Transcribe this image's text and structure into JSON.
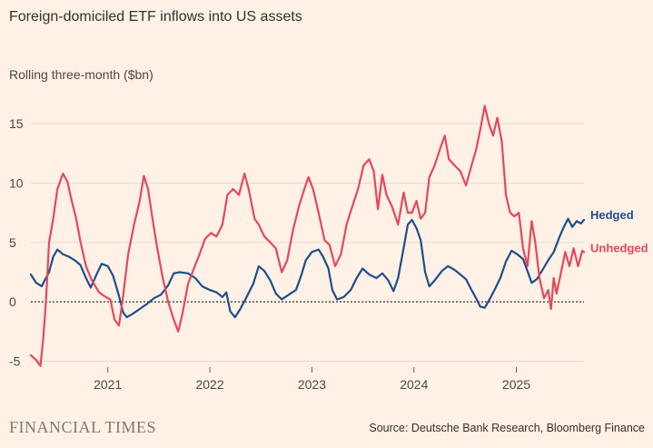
{
  "header": {
    "title": "Foreign-domiciled ETF inflows into US assets",
    "subtitle": "Rolling three-month ($bn)"
  },
  "footer": {
    "brand": "FINANCIAL TIMES",
    "source": "Source: Deutsche Bank Research, Bloomberg Finance"
  },
  "chart_data": {
    "type": "line",
    "ylim": [
      -5.5,
      17
    ],
    "xlim": [
      "2020-04-01",
      "2025-08-31"
    ],
    "y_ticks": [
      -5,
      0,
      5,
      10,
      15
    ],
    "x_ticks": [
      {
        "label": "2021",
        "date": "2021-01-01"
      },
      {
        "label": "2022",
        "date": "2022-01-01"
      },
      {
        "label": "2023",
        "date": "2023-01-01"
      },
      {
        "label": "2024",
        "date": "2024-01-01"
      },
      {
        "label": "2025",
        "date": "2025-01-01"
      }
    ],
    "gridlines": true,
    "zero_line": "dotted",
    "series": [
      {
        "name": "Hedged",
        "color": "#1f4e8c",
        "points": [
          [
            "2020-04-01",
            2.3
          ],
          [
            "2020-04-20",
            1.6
          ],
          [
            "2020-05-10",
            1.3
          ],
          [
            "2020-05-20",
            1.8
          ],
          [
            "2020-06-05",
            2.5
          ],
          [
            "2020-06-20",
            3.8
          ],
          [
            "2020-07-05",
            4.4
          ],
          [
            "2020-07-25",
            4.0
          ],
          [
            "2020-08-15",
            3.8
          ],
          [
            "2020-09-05",
            3.5
          ],
          [
            "2020-09-25",
            3.1
          ],
          [
            "2020-10-15",
            2.0
          ],
          [
            "2020-11-01",
            1.2
          ],
          [
            "2020-11-20",
            2.2
          ],
          [
            "2020-12-10",
            3.2
          ],
          [
            "2021-01-01",
            3.0
          ],
          [
            "2021-01-20",
            2.2
          ],
          [
            "2021-02-10",
            0.5
          ],
          [
            "2021-02-25",
            -0.9
          ],
          [
            "2021-03-10",
            -1.3
          ],
          [
            "2021-04-01",
            -1.0
          ],
          [
            "2021-04-25",
            -0.6
          ],
          [
            "2021-05-20",
            -0.2
          ],
          [
            "2021-06-15",
            0.3
          ],
          [
            "2021-07-10",
            0.6
          ],
          [
            "2021-08-05",
            1.4
          ],
          [
            "2021-08-25",
            2.4
          ],
          [
            "2021-09-15",
            2.5
          ],
          [
            "2021-10-15",
            2.4
          ],
          [
            "2021-11-10",
            2.0
          ],
          [
            "2021-12-05",
            1.3
          ],
          [
            "2022-01-01",
            1.0
          ],
          [
            "2022-01-25",
            0.8
          ],
          [
            "2022-02-15",
            0.4
          ],
          [
            "2022-03-01",
            0.8
          ],
          [
            "2022-03-15",
            -0.8
          ],
          [
            "2022-04-01",
            -1.3
          ],
          [
            "2022-04-20",
            -0.6
          ],
          [
            "2022-05-10",
            0.3
          ],
          [
            "2022-06-05",
            1.5
          ],
          [
            "2022-06-25",
            3.0
          ],
          [
            "2022-07-15",
            2.6
          ],
          [
            "2022-08-05",
            1.8
          ],
          [
            "2022-08-25",
            0.7
          ],
          [
            "2022-09-15",
            0.2
          ],
          [
            "2022-10-10",
            0.6
          ],
          [
            "2022-11-05",
            1.0
          ],
          [
            "2022-11-25",
            2.3
          ],
          [
            "2022-12-10",
            3.5
          ],
          [
            "2023-01-01",
            4.2
          ],
          [
            "2023-01-25",
            4.4
          ],
          [
            "2023-02-10",
            3.8
          ],
          [
            "2023-03-01",
            2.8
          ],
          [
            "2023-03-15",
            1.0
          ],
          [
            "2023-04-01",
            0.2
          ],
          [
            "2023-04-25",
            0.4
          ],
          [
            "2023-05-20",
            1.0
          ],
          [
            "2023-06-10",
            2.0
          ],
          [
            "2023-07-01",
            2.8
          ],
          [
            "2023-07-25",
            2.3
          ],
          [
            "2023-08-20",
            2.0
          ],
          [
            "2023-09-10",
            2.4
          ],
          [
            "2023-10-01",
            1.8
          ],
          [
            "2023-10-20",
            0.9
          ],
          [
            "2023-11-05",
            2.0
          ],
          [
            "2023-11-25",
            4.5
          ],
          [
            "2023-12-10",
            6.5
          ],
          [
            "2023-12-25",
            6.9
          ],
          [
            "2024-01-10",
            6.2
          ],
          [
            "2024-01-25",
            5.2
          ],
          [
            "2024-02-10",
            2.5
          ],
          [
            "2024-02-25",
            1.3
          ],
          [
            "2024-03-15",
            1.8
          ],
          [
            "2024-04-10",
            2.6
          ],
          [
            "2024-05-01",
            3.0
          ],
          [
            "2024-05-25",
            2.7
          ],
          [
            "2024-06-15",
            2.3
          ],
          [
            "2024-07-05",
            1.9
          ],
          [
            "2024-07-25",
            1.0
          ],
          [
            "2024-08-10",
            0.3
          ],
          [
            "2024-08-25",
            -0.4
          ],
          [
            "2024-09-10",
            -0.5
          ],
          [
            "2024-09-25",
            0.1
          ],
          [
            "2024-10-15",
            1.0
          ],
          [
            "2024-11-05",
            2.0
          ],
          [
            "2024-11-25",
            3.4
          ],
          [
            "2024-12-15",
            4.3
          ],
          [
            "2025-01-05",
            4.0
          ],
          [
            "2025-01-25",
            3.6
          ],
          [
            "2025-02-10",
            2.6
          ],
          [
            "2025-02-25",
            1.6
          ],
          [
            "2025-03-15",
            1.9
          ],
          [
            "2025-04-05",
            2.7
          ],
          [
            "2025-04-25",
            3.5
          ],
          [
            "2025-05-15",
            4.2
          ],
          [
            "2025-06-05",
            5.5
          ],
          [
            "2025-06-20",
            6.3
          ],
          [
            "2025-07-05",
            7.0
          ],
          [
            "2025-07-20",
            6.3
          ],
          [
            "2025-08-05",
            6.8
          ],
          [
            "2025-08-20",
            6.6
          ],
          [
            "2025-08-31",
            6.9
          ]
        ]
      },
      {
        "name": "Unhedged",
        "color": "#e5485d",
        "points": [
          [
            "2020-04-01",
            -4.5
          ],
          [
            "2020-04-20",
            -4.9
          ],
          [
            "2020-05-05",
            -5.4
          ],
          [
            "2020-05-15",
            -3.2
          ],
          [
            "2020-05-25",
            0.0
          ],
          [
            "2020-06-05",
            5.0
          ],
          [
            "2020-06-20",
            7.0
          ],
          [
            "2020-07-05",
            9.5
          ],
          [
            "2020-07-25",
            10.8
          ],
          [
            "2020-08-10",
            10.1
          ],
          [
            "2020-08-25",
            8.5
          ],
          [
            "2020-09-10",
            7.0
          ],
          [
            "2020-09-25",
            5.1
          ],
          [
            "2020-10-15",
            3.0
          ],
          [
            "2020-11-05",
            1.8
          ],
          [
            "2020-12-01",
            0.8
          ],
          [
            "2020-12-25",
            0.4
          ],
          [
            "2021-01-10",
            0.2
          ],
          [
            "2021-01-25",
            -1.5
          ],
          [
            "2021-02-10",
            -2.0
          ],
          [
            "2021-02-25",
            0.5
          ],
          [
            "2021-03-15",
            4.0
          ],
          [
            "2021-04-05",
            6.5
          ],
          [
            "2021-04-25",
            8.5
          ],
          [
            "2021-05-10",
            10.6
          ],
          [
            "2021-05-25",
            9.5
          ],
          [
            "2021-06-10",
            7.0
          ],
          [
            "2021-06-25",
            4.8
          ],
          [
            "2021-07-15",
            2.2
          ],
          [
            "2021-08-05",
            0.0
          ],
          [
            "2021-08-25",
            -1.5
          ],
          [
            "2021-09-10",
            -2.5
          ],
          [
            "2021-09-25",
            -1.0
          ],
          [
            "2021-10-15",
            1.5
          ],
          [
            "2021-11-05",
            2.8
          ],
          [
            "2021-11-25",
            4.0
          ],
          [
            "2021-12-15",
            5.3
          ],
          [
            "2022-01-05",
            5.8
          ],
          [
            "2022-01-25",
            5.5
          ],
          [
            "2022-02-15",
            6.5
          ],
          [
            "2022-03-05",
            9.0
          ],
          [
            "2022-03-25",
            9.5
          ],
          [
            "2022-04-15",
            9.0
          ],
          [
            "2022-05-05",
            10.8
          ],
          [
            "2022-05-20",
            9.5
          ],
          [
            "2022-06-10",
            7.0
          ],
          [
            "2022-06-25",
            6.5
          ],
          [
            "2022-07-15",
            5.5
          ],
          [
            "2022-08-05",
            5.0
          ],
          [
            "2022-08-25",
            4.5
          ],
          [
            "2022-09-15",
            2.5
          ],
          [
            "2022-10-05",
            3.5
          ],
          [
            "2022-10-25",
            6.0
          ],
          [
            "2022-11-15",
            8.0
          ],
          [
            "2022-12-05",
            9.5
          ],
          [
            "2022-12-20",
            10.5
          ],
          [
            "2023-01-05",
            9.5
          ],
          [
            "2023-01-25",
            7.5
          ],
          [
            "2023-02-15",
            5.2
          ],
          [
            "2023-03-05",
            4.8
          ],
          [
            "2023-03-25",
            3.0
          ],
          [
            "2023-04-15",
            4.0
          ],
          [
            "2023-05-05",
            6.5
          ],
          [
            "2023-05-25",
            8.0
          ],
          [
            "2023-06-15",
            9.5
          ],
          [
            "2023-07-05",
            11.5
          ],
          [
            "2023-07-25",
            12.0
          ],
          [
            "2023-08-10",
            11.0
          ],
          [
            "2023-08-25",
            7.8
          ],
          [
            "2023-09-10",
            10.7
          ],
          [
            "2023-09-25",
            9.0
          ],
          [
            "2023-10-15",
            8.0
          ],
          [
            "2023-11-05",
            6.5
          ],
          [
            "2023-11-25",
            9.2
          ],
          [
            "2023-12-10",
            7.5
          ],
          [
            "2023-12-25",
            7.5
          ],
          [
            "2024-01-10",
            8.5
          ],
          [
            "2024-01-25",
            7.0
          ],
          [
            "2024-02-10",
            7.5
          ],
          [
            "2024-02-25",
            10.5
          ],
          [
            "2024-03-15",
            11.5
          ],
          [
            "2024-04-05",
            13.0
          ],
          [
            "2024-04-20",
            14.0
          ],
          [
            "2024-05-05",
            12.0
          ],
          [
            "2024-05-25",
            11.5
          ],
          [
            "2024-06-15",
            11.0
          ],
          [
            "2024-07-05",
            9.8
          ],
          [
            "2024-07-25",
            11.5
          ],
          [
            "2024-08-10",
            12.8
          ],
          [
            "2024-08-25",
            14.5
          ],
          [
            "2024-09-10",
            16.5
          ],
          [
            "2024-09-25",
            15.0
          ],
          [
            "2024-10-10",
            14.0
          ],
          [
            "2024-10-25",
            15.5
          ],
          [
            "2024-11-10",
            13.5
          ],
          [
            "2024-11-25",
            9.0
          ],
          [
            "2024-12-10",
            7.5
          ],
          [
            "2024-12-25",
            7.2
          ],
          [
            "2025-01-10",
            7.5
          ],
          [
            "2025-01-25",
            4.5
          ],
          [
            "2025-02-10",
            3.0
          ],
          [
            "2025-02-25",
            6.8
          ],
          [
            "2025-03-10",
            5.0
          ],
          [
            "2025-03-25",
            2.0
          ],
          [
            "2025-04-10",
            0.3
          ],
          [
            "2025-04-25",
            1.0
          ],
          [
            "2025-05-05",
            -0.6
          ],
          [
            "2025-05-15",
            2.0
          ],
          [
            "2025-05-25",
            0.7
          ],
          [
            "2025-06-10",
            2.5
          ],
          [
            "2025-06-25",
            4.2
          ],
          [
            "2025-07-10",
            3.0
          ],
          [
            "2025-07-25",
            4.5
          ],
          [
            "2025-08-10",
            3.0
          ],
          [
            "2025-08-25",
            4.3
          ],
          [
            "2025-08-31",
            4.2
          ]
        ]
      }
    ]
  }
}
